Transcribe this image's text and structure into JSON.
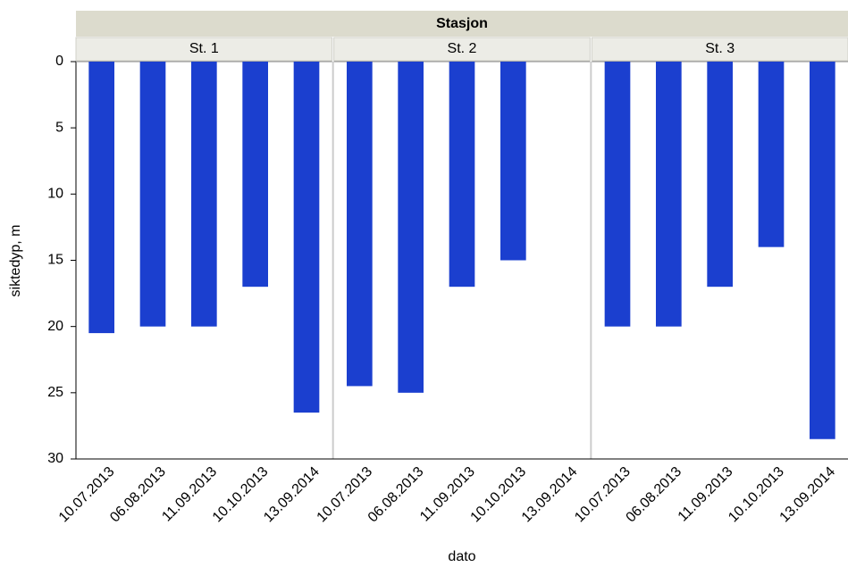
{
  "chart_data": {
    "type": "bar",
    "title": "Stasjon",
    "xlabel": "dato",
    "ylabel": "siktedyp, m",
    "ylim": [
      0,
      30
    ],
    "yticks": [
      0,
      5,
      10,
      15,
      20,
      25,
      30
    ],
    "y_reversed": true,
    "color": "#1b3fcf",
    "facets": [
      {
        "title": "St. 1",
        "categories": [
          "10.07.2013",
          "06.08.2013",
          "11.09.2013",
          "10.10.2013",
          "13.09.2014"
        ],
        "values": [
          20.5,
          20,
          20,
          17,
          26.5
        ]
      },
      {
        "title": "St. 2",
        "categories": [
          "10.07.2013",
          "06.08.2013",
          "11.09.2013",
          "10.10.2013",
          "13.09.2014"
        ],
        "values": [
          24.5,
          25,
          17,
          15,
          null
        ]
      },
      {
        "title": "St. 3",
        "categories": [
          "10.07.2013",
          "06.08.2013",
          "11.09.2013",
          "10.10.2013",
          "13.09.2014"
        ],
        "values": [
          20,
          20,
          17,
          14,
          28.5
        ]
      }
    ]
  }
}
